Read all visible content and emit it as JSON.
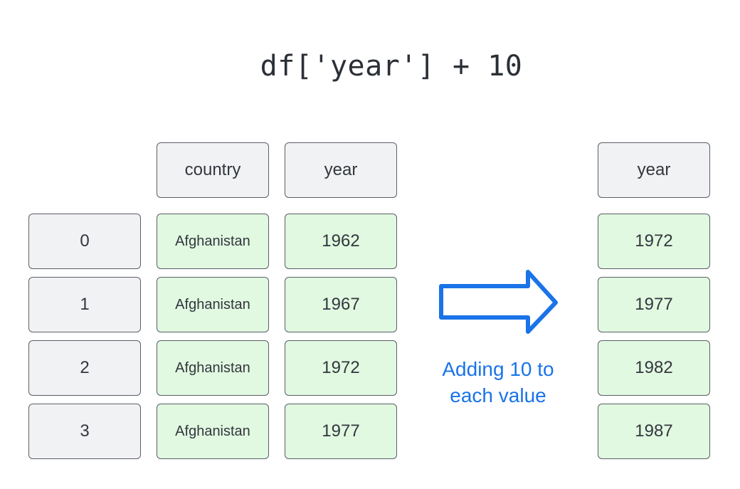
{
  "title": "df['year'] + 10",
  "left_table": {
    "headers": [
      "country",
      "year"
    ],
    "index": [
      "0",
      "1",
      "2",
      "3"
    ],
    "country": [
      "Afghanistan",
      "Afghanistan",
      "Afghanistan",
      "Afghanistan"
    ],
    "year": [
      "1962",
      "1967",
      "1972",
      "1977"
    ]
  },
  "arrow_caption": [
    "Adding 10 to",
    "each value"
  ],
  "right_table": {
    "header": "year",
    "year": [
      "1972",
      "1977",
      "1982",
      "1987"
    ]
  },
  "colors": {
    "header_fill": "#f1f2f4",
    "value_fill": "#e1f8e1",
    "arrow": "#1a73e8",
    "caption": "#1a73e8"
  },
  "icons": {
    "arrow": "right-arrow-icon"
  }
}
